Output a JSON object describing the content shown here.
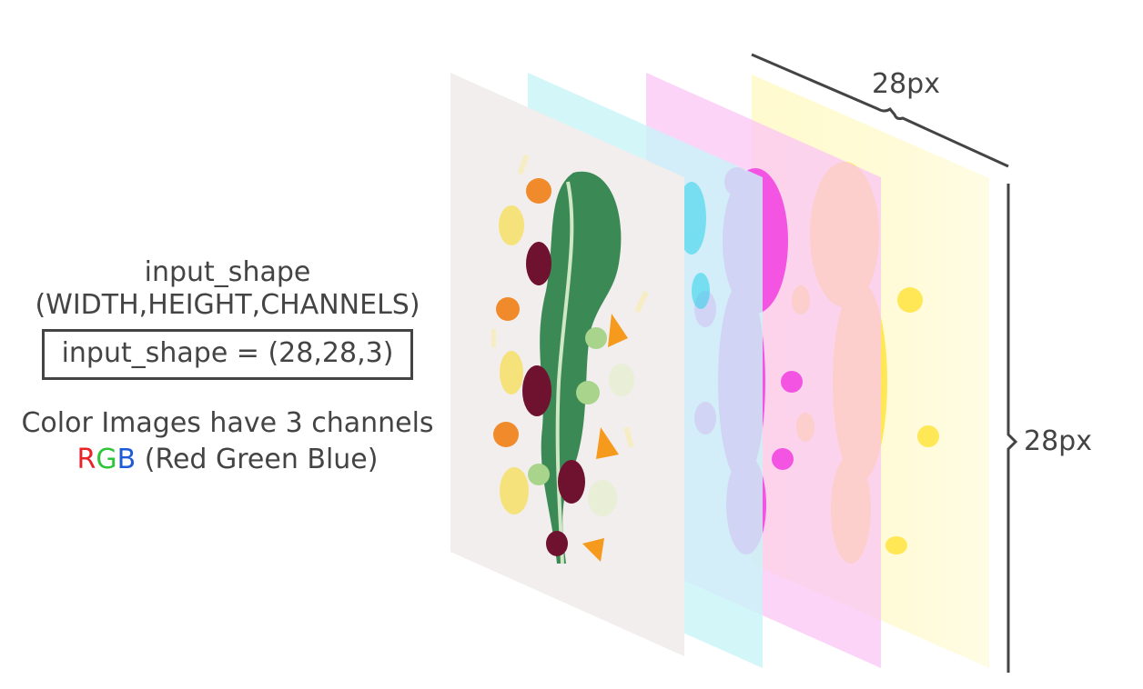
{
  "labels": {
    "line1": "input_shape",
    "line2": "(WIDTH,HEIGHT,CHANNELS)",
    "code": "input_shape = (28,28,3)",
    "note": "Color Images have 3 channels",
    "rgb_r": "R",
    "rgb_g": "G",
    "rgb_b": "B",
    "rgb_rest": " (Red Green Blue)"
  },
  "dimensions": {
    "width_label": "28px",
    "height_label": "28px"
  },
  "colors": {
    "text": "#444444",
    "red": "#e8242b",
    "green": "#2fc53a",
    "blue": "#1f5bd6",
    "layer_base": "#f1eeed",
    "layer_cyan": "#c8f4f8",
    "layer_magenta": "#fbc6f4",
    "layer_yellow": "#fff7a8"
  },
  "layers": [
    {
      "name": "original-color-image"
    },
    {
      "name": "cyan-channel"
    },
    {
      "name": "magenta-channel"
    },
    {
      "name": "yellow-channel"
    }
  ]
}
